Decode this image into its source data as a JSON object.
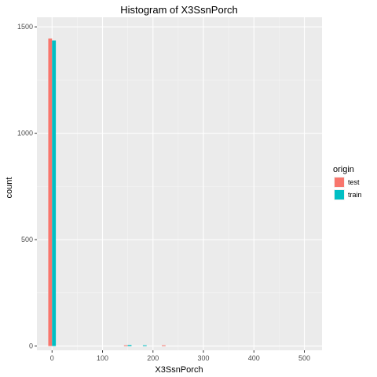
{
  "chart_data": {
    "type": "bar",
    "title": "Histogram of X3SsnPorch",
    "xlabel": "X3SsnPorch",
    "ylabel": "count",
    "xlim": [
      -30,
      535
    ],
    "ylim": [
      -20,
      1545
    ],
    "x_ticks": [
      0,
      100,
      200,
      300,
      400,
      500
    ],
    "y_ticks": [
      0,
      500,
      1000,
      1500
    ],
    "bin_width": 15,
    "grid": true,
    "legend": {
      "title": "origin",
      "position": "right"
    },
    "series": [
      {
        "name": "test",
        "color": "#F8766D",
        "bins": [
          {
            "x": 0,
            "count": 1445
          },
          {
            "x": 150,
            "count": 3
          },
          {
            "x": 225,
            "count": 2
          }
        ]
      },
      {
        "name": "train",
        "color": "#00BFC4",
        "bins": [
          {
            "x": 0,
            "count": 1436
          },
          {
            "x": 150,
            "count": 5
          },
          {
            "x": 180,
            "count": 3
          }
        ]
      }
    ]
  }
}
